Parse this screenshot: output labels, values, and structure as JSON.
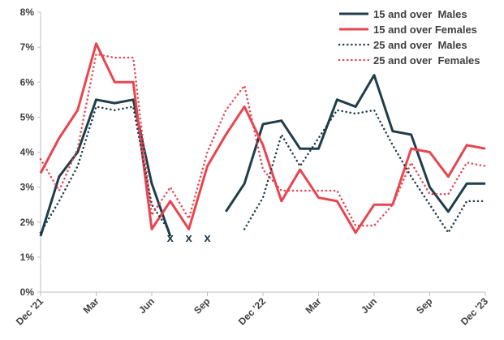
{
  "chart_data": {
    "type": "line",
    "title": "",
    "xlabel": "",
    "ylabel": "",
    "y_unit": "%",
    "ylim": [
      0,
      8
    ],
    "y_ticks": [
      0,
      1,
      2,
      3,
      4,
      5,
      6,
      7,
      8
    ],
    "y_tick_labels": [
      "0%",
      "1%",
      "2%",
      "3%",
      "4%",
      "5%",
      "6%",
      "7%",
      "8%"
    ],
    "x": [
      "Dec '21",
      "Jan '22",
      "Feb '22",
      "Mar '22",
      "Apr '22",
      "May '22",
      "Jun '22",
      "Jul '22",
      "Aug '22",
      "Sep '22",
      "Oct '22",
      "Nov '22",
      "Dec '22",
      "Jan '23",
      "Feb '23",
      "Mar '23",
      "Apr '23",
      "May '23",
      "Jun '23",
      "Jul '23",
      "Aug '23",
      "Sep '23",
      "Oct '23",
      "Nov '23",
      "Dec '23"
    ],
    "x_tick_labels": [
      {
        "index": 0,
        "label": "Dec '21"
      },
      {
        "index": 3,
        "label": "Mar"
      },
      {
        "index": 6,
        "label": "Jun"
      },
      {
        "index": 9,
        "label": "Sep"
      },
      {
        "index": 12,
        "label": "Dec '22"
      },
      {
        "index": 15,
        "label": "Mar"
      },
      {
        "index": 18,
        "label": "Jun"
      },
      {
        "index": 21,
        "label": "Sep"
      },
      {
        "index": 24,
        "label": "Dec '23"
      }
    ],
    "missing_marker": "x",
    "missing_indices": [
      7,
      8,
      9
    ],
    "grid": false,
    "legend_position": "top-right",
    "series": [
      {
        "name": "15 and over  Males",
        "color": "#1f3d4a",
        "style": "solid",
        "values": [
          1.6,
          3.3,
          4.0,
          5.5,
          5.4,
          5.5,
          3.1,
          1.6,
          null,
          null,
          2.3,
          3.1,
          4.8,
          4.9,
          4.1,
          4.1,
          5.5,
          5.3,
          6.2,
          4.6,
          4.5,
          3.0,
          2.3,
          3.1,
          3.1
        ]
      },
      {
        "name": "15 and over Females",
        "color": "#e8454f",
        "style": "solid",
        "values": [
          3.4,
          4.4,
          5.2,
          7.1,
          6.0,
          6.0,
          1.8,
          2.6,
          1.8,
          3.6,
          4.5,
          5.3,
          4.2,
          2.6,
          3.5,
          2.7,
          2.6,
          1.7,
          2.5,
          2.5,
          4.1,
          4.0,
          3.3,
          4.2,
          4.1
        ]
      },
      {
        "name": "25 and over  Males",
        "color": "#1f3d4a",
        "style": "dotted",
        "values": [
          1.7,
          2.6,
          3.6,
          5.3,
          5.2,
          5.3,
          2.5,
          1.7,
          null,
          null,
          null,
          1.8,
          2.7,
          4.5,
          3.6,
          4.4,
          5.2,
          5.1,
          5.2,
          4.2,
          3.3,
          2.5,
          1.7,
          2.6,
          2.6
        ]
      },
      {
        "name": "25 and over  Females",
        "color": "#e8454f",
        "style": "dotted",
        "values": [
          3.8,
          2.9,
          4.1,
          6.8,
          6.7,
          6.7,
          2.2,
          3.0,
          2.1,
          4.0,
          5.2,
          5.9,
          3.5,
          2.9,
          2.9,
          2.9,
          2.9,
          1.9,
          1.9,
          2.5,
          3.7,
          2.8,
          2.8,
          3.7,
          3.6
        ]
      }
    ]
  }
}
